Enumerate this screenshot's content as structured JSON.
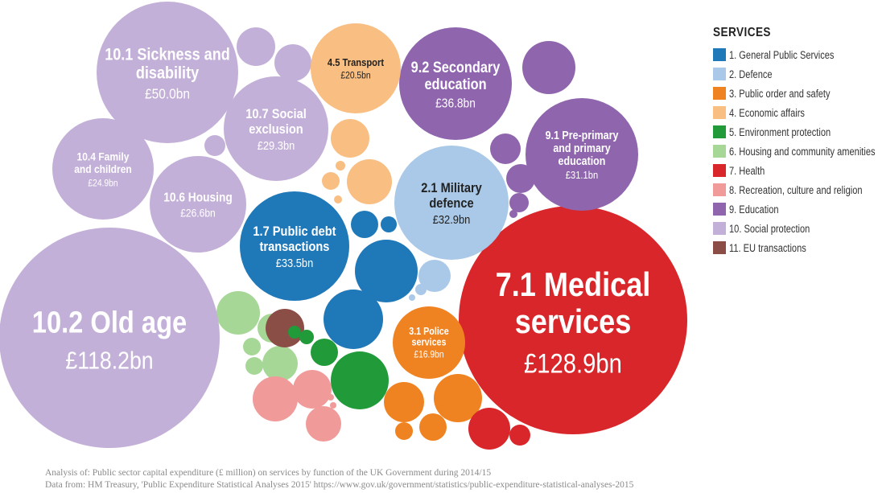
{
  "legend": {
    "title": "SERVICES",
    "items": [
      {
        "label": "1. General Public Services",
        "color": "#1f78b8"
      },
      {
        "label": "2. Defence",
        "color": "#aac9e8"
      },
      {
        "label": "3. Public order and safety",
        "color": "#f08321"
      },
      {
        "label": "4. Economic affairs",
        "color": "#f8be82"
      },
      {
        "label": "5. Environment protection",
        "color": "#219a3a"
      },
      {
        "label": "6. Housing and community amenities",
        "color": "#a6d796"
      },
      {
        "label": "7. Health",
        "color": "#d9262a"
      },
      {
        "label": "8. Recreation, culture and religion",
        "color": "#f09a9a"
      },
      {
        "label": "9. Education",
        "color": "#8f65ad"
      },
      {
        "label": "10. Social protection",
        "color": "#c3b0d8"
      },
      {
        "label": "11. EU transactions",
        "color": "#8b4e46"
      }
    ]
  },
  "footer": {
    "line1": "Analysis of: Public sector capital expenditure (£ million) on services by function of the UK Government during 2014/15",
    "line2": "Data from: HM Treasury, 'Public Expenditure Statistical Analyses 2015' https://www.gov.uk/government/statistics/public-expenditure-statistical-analyses-2015"
  },
  "chart_data": {
    "type": "bubble",
    "unit": "£bn",
    "labeled": [
      {
        "name": "7.1 Medical services",
        "lines": [
          "7.1 Medical",
          "services"
        ],
        "value_label": "£128.9bn",
        "value": 128.9,
        "category": 7
      },
      {
        "name": "10.2 Old age",
        "lines": [
          "10.2 Old age"
        ],
        "value_label": "£118.2bn",
        "value": 118.2,
        "category": 10
      },
      {
        "name": "10.1 Sickness and disability",
        "lines": [
          "10.1 Sickness and",
          "disability"
        ],
        "value_label": "£50.0bn",
        "value": 50.0,
        "category": 10
      },
      {
        "name": "9.2 Secondary education",
        "lines": [
          "9.2 Secondary",
          "education"
        ],
        "value_label": "£36.8bn",
        "value": 36.8,
        "category": 9
      },
      {
        "name": "1.7 Public debt transactions",
        "lines": [
          "1.7 Public debt",
          "transactions"
        ],
        "value_label": "£33.5bn",
        "value": 33.5,
        "category": 1
      },
      {
        "name": "2.1 Military defence",
        "lines": [
          "2.1 Military",
          "defence"
        ],
        "value_label": "£32.9bn",
        "value": 32.9,
        "category": 2
      },
      {
        "name": "9.1 Pre-primary and primary education",
        "lines": [
          "9.1 Pre-primary",
          "and primary",
          "education"
        ],
        "value_label": "£31.1bn",
        "value": 31.1,
        "category": 9
      },
      {
        "name": "10.7 Social exclusion",
        "lines": [
          "10.7 Social",
          "exclusion"
        ],
        "value_label": "£29.3bn",
        "value": 29.3,
        "category": 10
      },
      {
        "name": "10.6 Housing",
        "lines": [
          "10.6 Housing"
        ],
        "value_label": "£26.6bn",
        "value": 26.6,
        "category": 10
      },
      {
        "name": "10.4 Family and children",
        "lines": [
          "10.4 Family",
          "and children"
        ],
        "value_label": "£24.9bn",
        "value": 24.9,
        "category": 10
      },
      {
        "name": "4.5 Transport",
        "lines": [
          "4.5 Transport"
        ],
        "value_label": "£20.5bn",
        "value": 20.5,
        "category": 4
      },
      {
        "name": "3.1 Police services",
        "lines": [
          "3.1 Police",
          "services"
        ],
        "value_label": "£16.9bn",
        "value": 16.9,
        "category": 3
      }
    ],
    "unlabeled_bubble_categories": [
      10,
      10,
      10,
      9,
      9,
      9,
      9,
      9,
      2,
      2,
      2,
      4,
      4,
      4,
      4,
      4,
      1,
      1,
      1,
      1,
      1,
      6,
      6,
      6,
      6,
      6,
      11,
      5,
      5,
      5,
      5,
      8,
      8,
      8,
      8,
      8,
      3,
      3,
      3,
      3,
      7,
      7
    ]
  }
}
